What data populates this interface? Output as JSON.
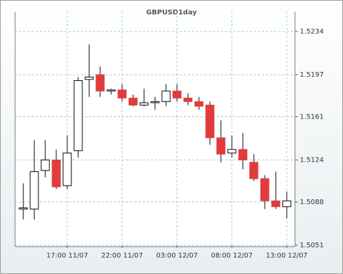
{
  "chart_data": {
    "type": "candlestick",
    "title": "GBPUSD1day",
    "categories": [
      null,
      null,
      null,
      null,
      "17:00 11/07",
      null,
      null,
      null,
      null,
      "22:00 11/07",
      null,
      null,
      null,
      null,
      "03:00 12/07",
      null,
      null,
      null,
      null,
      "08:00 12/07",
      null,
      null,
      null,
      null,
      "13:00 12/07"
    ],
    "open": [
      1.5082,
      1.5082,
      1.5115,
      1.5124,
      1.5102,
      1.5132,
      1.5193,
      1.5197,
      1.5183,
      1.5184,
      1.5177,
      1.5171,
      1.5173,
      1.5174,
      1.5183,
      1.5177,
      1.5174,
      1.5171,
      1.5143,
      1.513,
      1.5133,
      1.5122,
      1.5108,
      1.5089,
      1.5084
    ],
    "high": [
      1.5104,
      1.5141,
      1.5141,
      1.5133,
      1.5145,
      1.5195,
      1.5223,
      1.5204,
      1.5185,
      1.5189,
      1.518,
      1.5185,
      1.5178,
      1.5189,
      1.5189,
      1.5181,
      1.5178,
      1.5174,
      1.5158,
      1.5145,
      1.5147,
      1.5129,
      1.5111,
      1.5114,
      1.5097
    ],
    "low": [
      1.5073,
      1.5073,
      1.5109,
      1.5099,
      1.5099,
      1.5126,
      1.5178,
      1.5178,
      1.518,
      1.5174,
      1.517,
      1.517,
      1.5167,
      1.517,
      1.5174,
      1.5171,
      1.5167,
      1.5137,
      1.5122,
      1.5126,
      1.5116,
      1.5106,
      1.5082,
      1.5082,
      1.5074
    ],
    "close": [
      1.5083,
      1.5114,
      1.5124,
      1.5101,
      1.513,
      1.5192,
      1.5195,
      1.5183,
      1.5184,
      1.5177,
      1.5171,
      1.5173,
      1.5174,
      1.5183,
      1.5177,
      1.5174,
      1.517,
      1.5143,
      1.5129,
      1.5133,
      1.5124,
      1.5108,
      1.5089,
      1.5084,
      1.5089
    ],
    "up_color": "#ffffff",
    "down_color": "#e03c3c",
    "ylim": [
      1.5051,
      1.5251
    ],
    "yticks": [
      1.5051,
      1.5088,
      1.5124,
      1.5161,
      1.5197,
      1.5234
    ],
    "grid": true
  }
}
